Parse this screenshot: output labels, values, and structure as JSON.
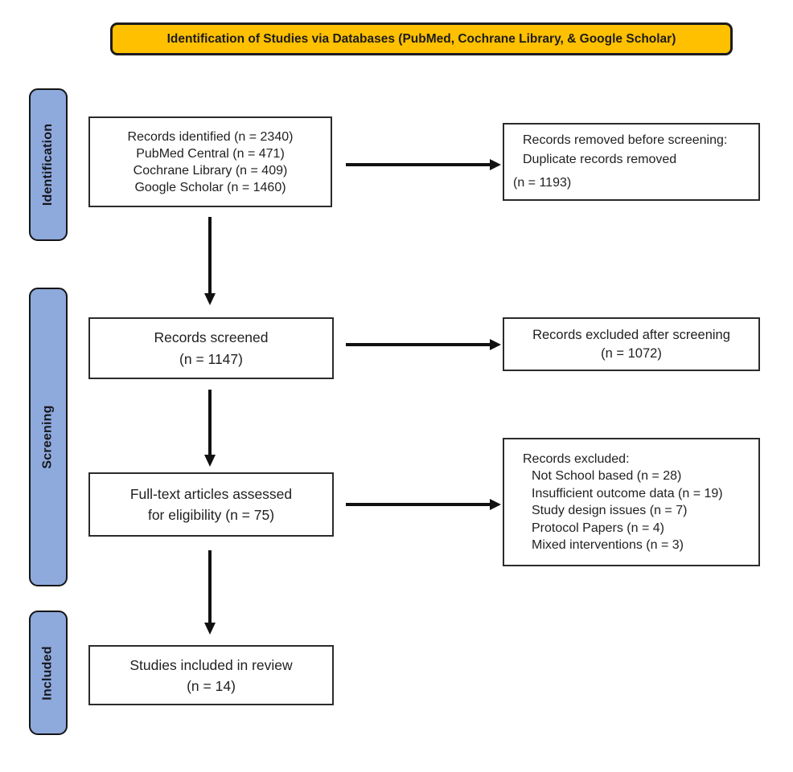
{
  "title": {
    "text": "Identification of Studies via Databases (PubMed, Cochrane Library, & Google Scholar)"
  },
  "colors": {
    "banner_background": "#FFC000",
    "stage_background": "#8EA9DB",
    "border": "#1c1c1c",
    "box_border": "#2b2b2b",
    "arrow": "#111111",
    "text": "#1f1f1f"
  },
  "stages": [
    {
      "label": "Identification"
    },
    {
      "label": "Screening"
    },
    {
      "label": "Included"
    }
  ],
  "boxes": {
    "records_identified": {
      "lines": [
        "Records identified (n = 2340)",
        "PubMed Central (n = 471)",
        "Cochrane Library (n = 409)",
        "Google Scholar (n = 1460)"
      ]
    },
    "records_removed": {
      "lines": [
        "Records removed before screening:",
        "Duplicate records removed",
        "(n = 1193)"
      ]
    },
    "records_screened": {
      "lines": [
        "Records screened",
        "(n = 1147)"
      ]
    },
    "records_excluded_screening": {
      "lines": [
        "Records excluded after screening",
        "(n = 1072)"
      ]
    },
    "fulltext_assessed": {
      "lines": [
        "Full-text articles assessed",
        "for eligibility (n = 75)"
      ]
    },
    "records_excluded_fulltext": {
      "heading": "Records excluded:",
      "items": [
        "Not School based (n = 28)",
        "Insufficient outcome data (n = 19)",
        "Study design issues (n = 7)",
        "Protocol Papers (n = 4)",
        "Mixed interventions (n = 3)"
      ]
    },
    "studies_included": {
      "lines": [
        "Studies included in review",
        "(n = 14)"
      ]
    }
  }
}
